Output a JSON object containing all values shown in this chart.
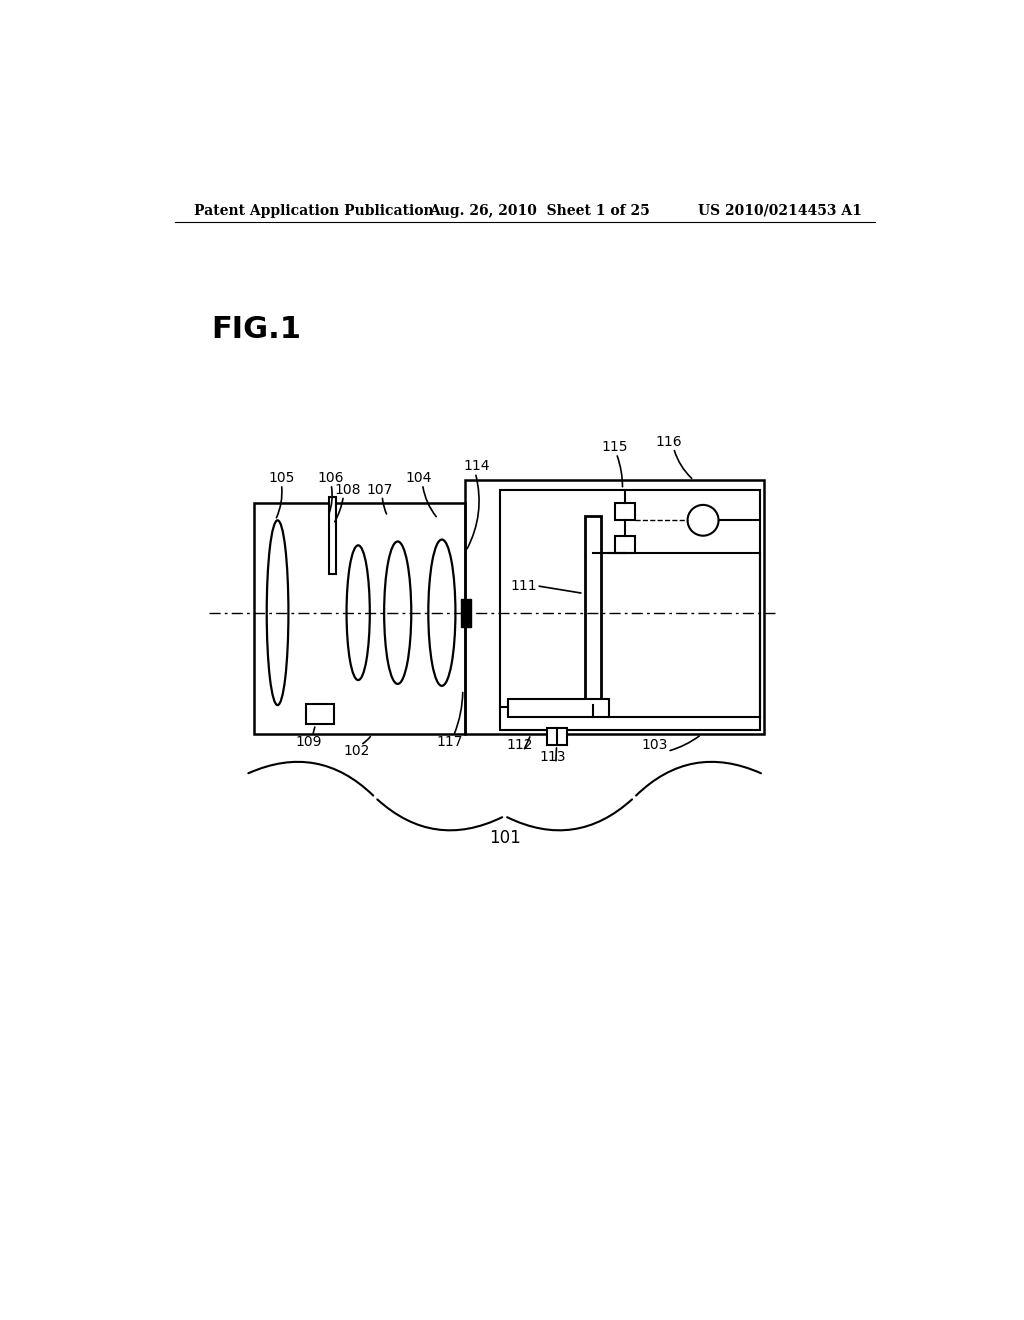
{
  "bg_color": "#ffffff",
  "header_left": "Patent Application Publication",
  "header_mid": "Aug. 26, 2010  Sheet 1 of 25",
  "header_right": "US 2010/0214453 A1",
  "fig_label": "FIG.1"
}
